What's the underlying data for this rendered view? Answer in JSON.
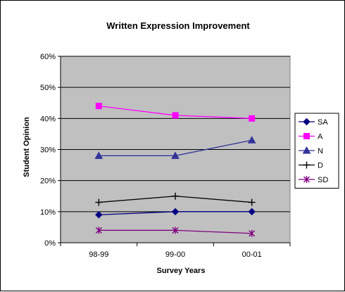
{
  "chart_data": {
    "type": "line",
    "title": "Written Expression Improvement",
    "xlabel": "Survey Years",
    "ylabel": "Student Opinion",
    "categories": [
      "98-99",
      "99-00",
      "00-01"
    ],
    "ylim": [
      0,
      60
    ],
    "yticks": [
      "0%",
      "10%",
      "20%",
      "30%",
      "40%",
      "50%",
      "60%"
    ],
    "grid": true,
    "plot_background": "#c0c0c0",
    "legend_position": "right",
    "series": [
      {
        "name": "SA",
        "values": [
          9,
          10,
          10
        ],
        "color": "#000080",
        "marker": "diamond"
      },
      {
        "name": "A",
        "values": [
          44,
          41,
          40
        ],
        "color": "#ff00ff",
        "marker": "square"
      },
      {
        "name": "N",
        "values": [
          28,
          28,
          33
        ],
        "color": "#333399",
        "marker": "triangle"
      },
      {
        "name": "D",
        "values": [
          13,
          15,
          13
        ],
        "color": "#000000",
        "marker": "plus"
      },
      {
        "name": "SD",
        "values": [
          4,
          4,
          3
        ],
        "color": "#800080",
        "marker": "asterisk"
      }
    ]
  }
}
